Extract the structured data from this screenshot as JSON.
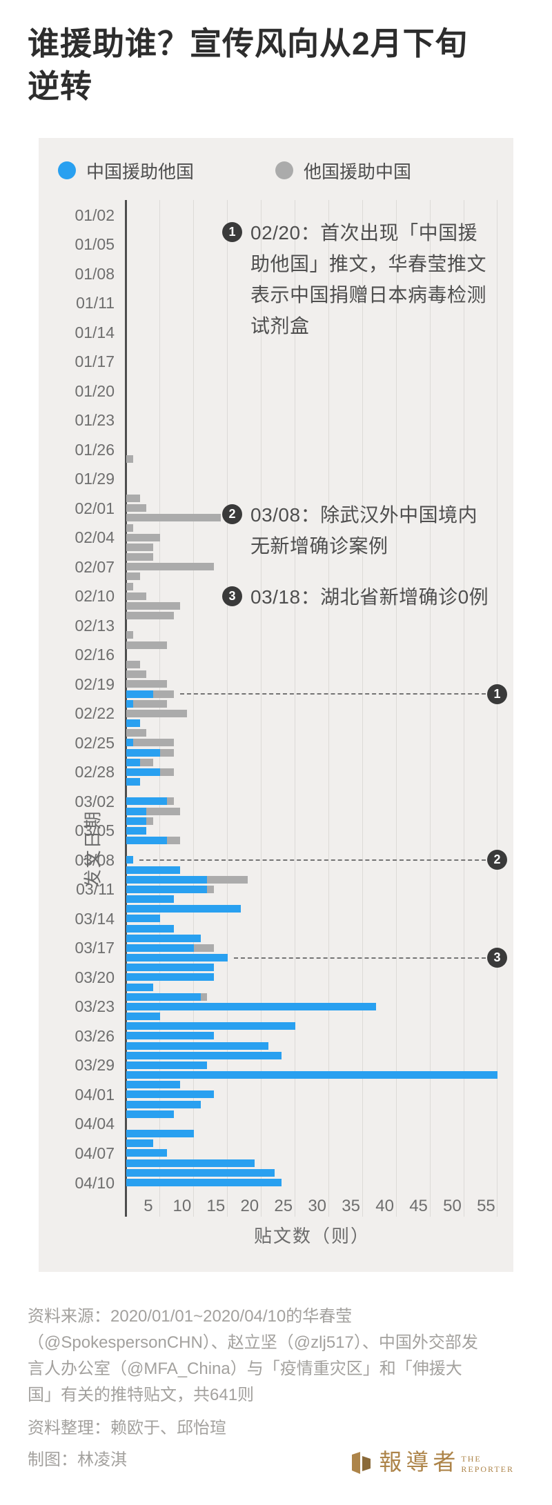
{
  "title": {
    "text": "谁援助谁？宣传风向从2月下旬\n逆转"
  },
  "colors": {
    "blue": "#29a0f0",
    "gray": "#ababab",
    "badge": "#3a3a3a",
    "brand_gold": "#ad8449",
    "card_bg": "#f1efed"
  },
  "legend": [
    {
      "label": "中国援助他国",
      "color": "#29a0f0"
    },
    {
      "label": "他国援助中国",
      "color": "#ababab"
    }
  ],
  "chart_data": {
    "type": "bar",
    "orientation": "horizontal",
    "stacked": true,
    "title": "谁援助谁？宣传风向从2月下旬逆转",
    "xlabel": "贴文数（则）",
    "ylabel": "发文日期",
    "xlim": [
      0,
      57
    ],
    "x_ticks": [
      5,
      10,
      15,
      20,
      25,
      30,
      35,
      40,
      45,
      50,
      55
    ],
    "y_tick_labels": [
      "01/02",
      "01/05",
      "01/08",
      "01/11",
      "01/14",
      "01/17",
      "01/20",
      "01/23",
      "01/26",
      "01/29",
      "02/01",
      "02/04",
      "02/07",
      "02/10",
      "02/13",
      "02/16",
      "02/19",
      "02/22",
      "02/25",
      "02/28",
      "03/02",
      "03/05",
      "03/08",
      "03/11",
      "03/14",
      "03/17",
      "03/20",
      "03/23",
      "03/26",
      "03/29",
      "04/01",
      "04/04",
      "04/07",
      "04/10"
    ],
    "series_names": {
      "blue": "中国援助他国",
      "gray": "他国援助中国"
    },
    "total_posts": 641,
    "rows": [
      [
        "01/01",
        0,
        0
      ],
      [
        "01/02",
        0,
        0
      ],
      [
        "01/03",
        0,
        0
      ],
      [
        "01/04",
        0,
        0
      ],
      [
        "01/05",
        0,
        0
      ],
      [
        "01/06",
        0,
        0
      ],
      [
        "01/07",
        0,
        0
      ],
      [
        "01/08",
        0,
        0
      ],
      [
        "01/09",
        0,
        0
      ],
      [
        "01/10",
        0,
        0
      ],
      [
        "01/11",
        0,
        0
      ],
      [
        "01/12",
        0,
        0
      ],
      [
        "01/13",
        0,
        0
      ],
      [
        "01/14",
        0,
        0
      ],
      [
        "01/15",
        0,
        0
      ],
      [
        "01/16",
        0,
        0
      ],
      [
        "01/17",
        0,
        0
      ],
      [
        "01/18",
        0,
        0
      ],
      [
        "01/19",
        0,
        0
      ],
      [
        "01/20",
        0,
        0
      ],
      [
        "01/21",
        0,
        0
      ],
      [
        "01/22",
        0,
        0
      ],
      [
        "01/23",
        0,
        0
      ],
      [
        "01/24",
        0,
        0
      ],
      [
        "01/25",
        0,
        0
      ],
      [
        "01/26",
        0,
        0
      ],
      [
        "01/27",
        0,
        1
      ],
      [
        "01/28",
        0,
        0
      ],
      [
        "01/29",
        0,
        0
      ],
      [
        "01/30",
        0,
        0
      ],
      [
        "01/31",
        0,
        2
      ],
      [
        "02/01",
        0,
        3
      ],
      [
        "02/02",
        0,
        14
      ],
      [
        "02/03",
        0,
        1
      ],
      [
        "02/04",
        0,
        5
      ],
      [
        "02/05",
        0,
        4
      ],
      [
        "02/06",
        0,
        4
      ],
      [
        "02/07",
        0,
        13
      ],
      [
        "02/08",
        0,
        2
      ],
      [
        "02/09",
        0,
        1
      ],
      [
        "02/10",
        0,
        3
      ],
      [
        "02/11",
        0,
        8
      ],
      [
        "02/12",
        0,
        7
      ],
      [
        "02/13",
        0,
        0
      ],
      [
        "02/14",
        0,
        1
      ],
      [
        "02/15",
        0,
        6
      ],
      [
        "02/16",
        0,
        0
      ],
      [
        "02/17",
        0,
        2
      ],
      [
        "02/18",
        0,
        3
      ],
      [
        "02/19",
        0,
        6
      ],
      [
        "02/20",
        4,
        3
      ],
      [
        "02/21",
        1,
        5
      ],
      [
        "02/22",
        0,
        9
      ],
      [
        "02/23",
        2,
        0
      ],
      [
        "02/24",
        0,
        3
      ],
      [
        "02/25",
        1,
        6
      ],
      [
        "02/26",
        5,
        2
      ],
      [
        "02/27",
        2,
        2
      ],
      [
        "02/28",
        5,
        2
      ],
      [
        "02/29",
        2,
        0
      ],
      [
        "03/01",
        0,
        0
      ],
      [
        "03/02",
        6,
        1
      ],
      [
        "03/03",
        3,
        5
      ],
      [
        "03/04",
        3,
        1
      ],
      [
        "03/05",
        3,
        0
      ],
      [
        "03/06",
        6,
        2
      ],
      [
        "03/07",
        0,
        0
      ],
      [
        "03/08",
        1,
        0
      ],
      [
        "03/09",
        8,
        0
      ],
      [
        "03/10",
        12,
        6
      ],
      [
        "03/11",
        12,
        1
      ],
      [
        "03/12",
        7,
        0
      ],
      [
        "03/13",
        17,
        0
      ],
      [
        "03/14",
        5,
        0
      ],
      [
        "03/15",
        7,
        0
      ],
      [
        "03/16",
        11,
        0
      ],
      [
        "03/17",
        10,
        3
      ],
      [
        "03/18",
        15,
        0
      ],
      [
        "03/19",
        13,
        0
      ],
      [
        "03/20",
        13,
        0
      ],
      [
        "03/21",
        4,
        0
      ],
      [
        "03/22",
        11,
        1
      ],
      [
        "03/23",
        37,
        0
      ],
      [
        "03/24",
        5,
        0
      ],
      [
        "03/25",
        25,
        0
      ],
      [
        "03/26",
        13,
        0
      ],
      [
        "03/27",
        21,
        0
      ],
      [
        "03/28",
        23,
        0
      ],
      [
        "03/29",
        12,
        0
      ],
      [
        "03/30",
        55,
        0
      ],
      [
        "03/31",
        8,
        0
      ],
      [
        "04/01",
        13,
        0
      ],
      [
        "04/02",
        11,
        0
      ],
      [
        "04/03",
        7,
        0
      ],
      [
        "04/04",
        0,
        0
      ],
      [
        "04/05",
        10,
        0
      ],
      [
        "04/06",
        4,
        0
      ],
      [
        "04/07",
        6,
        0
      ],
      [
        "04/08",
        19,
        0
      ],
      [
        "04/09",
        22,
        0
      ],
      [
        "04/10",
        23,
        0
      ]
    ],
    "annotations": [
      {
        "num": "1",
        "date": "02/20",
        "lines": "02/20：首次出现「中国援\n助他国」推文，华春莹推文\n表示中国捐赠日本病毒检测\n试剂盒"
      },
      {
        "num": "2",
        "date": "03/08",
        "lines": "03/08：除武汉外中国境内\n无新增确诊案例"
      },
      {
        "num": "3",
        "date": "03/18",
        "lines": "03/18：湖北省新增确诊0例"
      }
    ]
  },
  "footer": {
    "source": "资料来源：2020/01/01~2020/04/10的华春莹\n（@SpokespersonCHN）、赵立坚（@zlj517）、中国外交部发\n言人办公室（@MFA_China）与「疫情重灾区」和「伸援大\n国」有关的推特贴文，共641则",
    "credit1": "资料整理：赖欧于、邱怡瑄",
    "credit2": "制图：林凌淇"
  },
  "logo": {
    "cjk": "報導者",
    "en": "THE\nREPORTER"
  }
}
